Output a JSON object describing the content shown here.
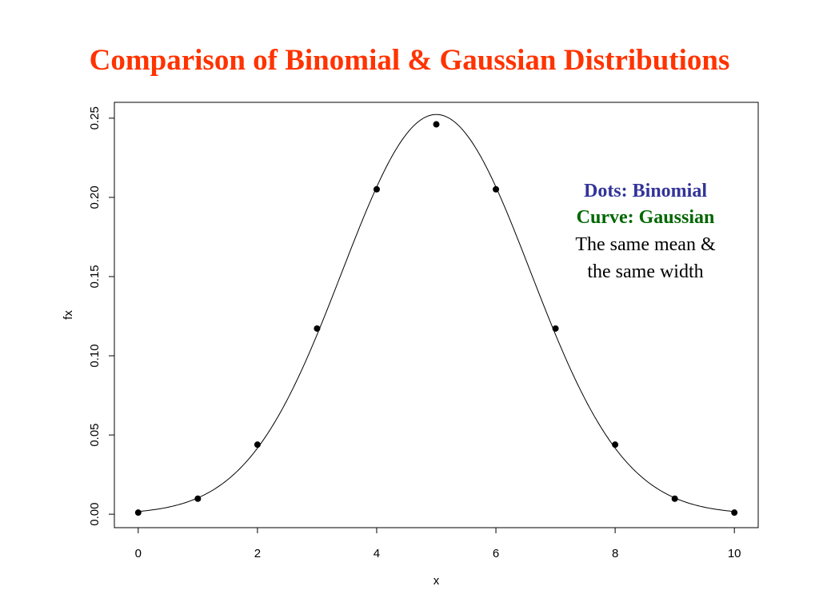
{
  "title": "Comparison of Binomial & Gaussian Distributions",
  "colors": {
    "title": "#ff3300",
    "binomial_label": "#333399",
    "gaussian_label": "#006600",
    "plain_text": "#000000",
    "marks": "#000000"
  },
  "annotation": {
    "line1": "Dots: Binomial",
    "line2": "Curve: Gaussian",
    "line3": "The same mean &",
    "line4": "the same width"
  },
  "chart_data": {
    "type": "scatter",
    "xlabel": "x",
    "ylabel": "fx",
    "xlim": [
      -0.4,
      10.4
    ],
    "ylim": [
      -0.0085,
      0.26
    ],
    "xticks": [
      0,
      2,
      4,
      6,
      8,
      10
    ],
    "xtick_labels": [
      "0",
      "2",
      "4",
      "6",
      "8",
      "10"
    ],
    "yticks": [
      0.0,
      0.05,
      0.1,
      0.15,
      0.2,
      0.25
    ],
    "ytick_labels": [
      "0.00",
      "0.05",
      "0.10",
      "0.15",
      "0.20",
      "0.25"
    ],
    "grid": false,
    "legend": "none",
    "series": [
      {
        "kind": "points",
        "x": [
          0,
          1,
          2,
          3,
          4,
          5,
          6,
          7,
          8,
          9,
          10
        ],
        "y": [
          0.001,
          0.0098,
          0.0439,
          0.1172,
          0.2051,
          0.2461,
          0.2051,
          0.1172,
          0.0439,
          0.0098,
          0.001
        ]
      },
      {
        "kind": "curve",
        "distribution": "gaussian",
        "mean": 5,
        "sd": 1.5811,
        "x_range": [
          0,
          10
        ]
      }
    ]
  }
}
